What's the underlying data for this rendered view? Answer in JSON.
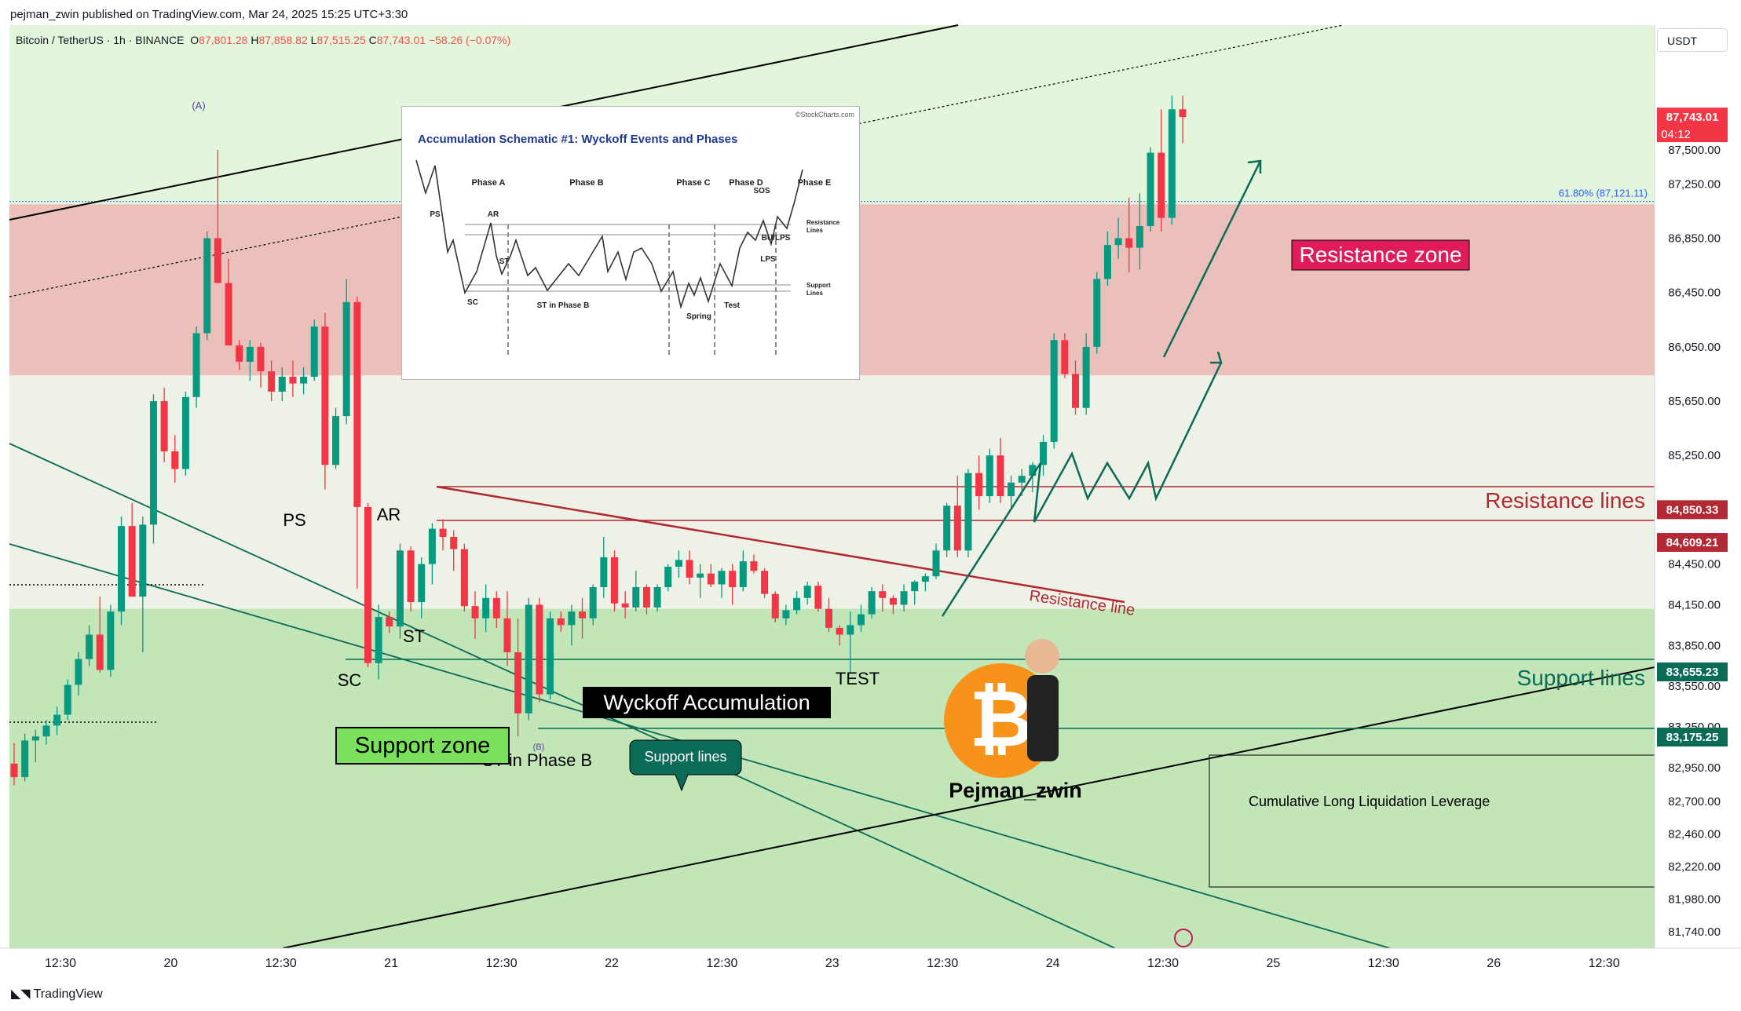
{
  "publisher": "pejman_zwin published on TradingView.com, Mar 24, 2025 15:25 UTC+3:30",
  "legend": {
    "symbol": "Bitcoin / TetherUS · 1h · BINANCE",
    "open_label": "O",
    "open": "87,801.28",
    "high_label": "H",
    "high": "87,858.82",
    "low_label": "L",
    "low": "87,515.25",
    "close_label": "C",
    "close": "87,743.01",
    "change": "−58.26 (−0.07%)"
  },
  "currency": "USDT",
  "footer": "TradingView",
  "colors": {
    "up": "#089981",
    "down": "#f23645",
    "resistance_zone": "#ebc0bb",
    "support_zone": "#c2e6b8",
    "resistance": "#b22833",
    "support": "#0a6b57"
  },
  "chart_data": {
    "type": "candlestick",
    "y_range": [
      81620,
      88420
    ],
    "y_ticks": [
      "87,500.00",
      "87,250.00",
      "86,850.00",
      "86,450.00",
      "86,050.00",
      "85,650.00",
      "85,250.00",
      "84,450.00",
      "84,150.00",
      "83,850.00",
      "83,550.00",
      "83,250.00",
      "82,950.00",
      "82,700.00",
      "82,460.00",
      "82,220.00",
      "81,980.00",
      "81,740.00"
    ],
    "x_ticks": [
      "12:30",
      "20",
      "12:30",
      "21",
      "12:30",
      "22",
      "12:30",
      "23",
      "12:30",
      "24",
      "12:30",
      "25",
      "12:30",
      "26",
      "12:30"
    ],
    "price_tags": [
      {
        "label": "87,743.01",
        "sub": "04:12",
        "value": 87743.01,
        "color": "#f23645"
      },
      {
        "label": "84,850.33",
        "value": 84850.33,
        "color": "#b22833"
      },
      {
        "label": "84,609.21",
        "value": 84609.21,
        "color": "#b22833"
      },
      {
        "label": "83,655.23",
        "value": 83655.23,
        "color": "#0a6b57"
      },
      {
        "label": "83,175.25",
        "value": 83175.25,
        "color": "#0a6b57"
      }
    ],
    "fib_label": "61.80% (87,121.11)",
    "fib_value": 87121.11,
    "resistance_zone": [
      85840,
      87100
    ],
    "support_zone": [
      81620,
      84120
    ],
    "candles": [
      [
        82980,
        83130,
        82820,
        82880
      ],
      [
        82880,
        83200,
        82850,
        83150
      ],
      [
        83150,
        83230,
        82990,
        83180
      ],
      [
        83180,
        83300,
        83120,
        83260
      ],
      [
        83260,
        83400,
        83190,
        83340
      ],
      [
        83340,
        83600,
        83300,
        83560
      ],
      [
        83560,
        83800,
        83480,
        83750
      ],
      [
        83750,
        84000,
        83700,
        83930
      ],
      [
        83930,
        84210,
        83650,
        83670
      ],
      [
        83670,
        84150,
        83620,
        84100
      ],
      [
        84100,
        84800,
        84000,
        84730
      ],
      [
        84730,
        84900,
        84220,
        84210
      ],
      [
        84210,
        84800,
        83800,
        84740
      ],
      [
        84740,
        85700,
        84600,
        85650
      ],
      [
        85650,
        85750,
        85200,
        85280
      ],
      [
        85280,
        85400,
        85050,
        85150
      ],
      [
        85150,
        85720,
        85100,
        85680
      ],
      [
        85680,
        86200,
        85600,
        86150
      ],
      [
        86150,
        86900,
        86100,
        86850
      ],
      [
        86850,
        87500,
        86520,
        86520
      ],
      [
        86520,
        86700,
        86100,
        86060
      ],
      [
        86060,
        86100,
        85880,
        85940
      ],
      [
        85940,
        86100,
        85800,
        86050
      ],
      [
        86050,
        86080,
        85750,
        85870
      ],
      [
        85870,
        85950,
        85650,
        85720
      ],
      [
        85720,
        85900,
        85650,
        85830
      ],
      [
        85830,
        85950,
        85680,
        85780
      ],
      [
        85780,
        85900,
        85700,
        85830
      ],
      [
        85830,
        86250,
        85800,
        86200
      ],
      [
        86200,
        86300,
        85000,
        85180
      ],
      [
        85180,
        85600,
        85150,
        85540
      ],
      [
        85540,
        86550,
        85480,
        86380
      ],
      [
        86380,
        86420,
        84270,
        84870
      ],
      [
        84870,
        84900,
        83690,
        83720
      ],
      [
        83720,
        84150,
        83600,
        84060
      ],
      [
        84060,
        84100,
        83940,
        83990
      ],
      [
        83990,
        84600,
        83900,
        84550
      ],
      [
        84550,
        84580,
        84100,
        84170
      ],
      [
        84170,
        84500,
        84050,
        84450
      ],
      [
        84450,
        84750,
        84300,
        84710
      ],
      [
        84710,
        84780,
        84550,
        84650
      ],
      [
        84650,
        84700,
        84400,
        84560
      ],
      [
        84560,
        84600,
        84100,
        84140
      ],
      [
        84140,
        84250,
        83900,
        84050
      ],
      [
        84050,
        84300,
        83950,
        84200
      ],
      [
        84200,
        84250,
        83980,
        84050
      ],
      [
        84050,
        84250,
        83700,
        83800
      ],
      [
        83800,
        84050,
        83180,
        83350
      ],
      [
        83350,
        84200,
        83300,
        84150
      ],
      [
        84150,
        84200,
        83430,
        83490
      ],
      [
        83490,
        84100,
        83450,
        84050
      ],
      [
        84050,
        84100,
        83950,
        84000
      ],
      [
        84000,
        84150,
        83850,
        84100
      ],
      [
        84100,
        84200,
        83900,
        84050
      ],
      [
        84050,
        84300,
        84000,
        84280
      ],
      [
        84280,
        84650,
        84200,
        84500
      ],
      [
        84500,
        84550,
        84100,
        84160
      ],
      [
        84160,
        84250,
        84050,
        84130
      ],
      [
        84130,
        84400,
        84100,
        84280
      ],
      [
        84280,
        84300,
        84080,
        84130
      ],
      [
        84130,
        84300,
        84100,
        84280
      ],
      [
        84280,
        84450,
        84250,
        84430
      ],
      [
        84430,
        84550,
        84350,
        84480
      ],
      [
        84480,
        84550,
        84300,
        84350
      ],
      [
        84350,
        84450,
        84200,
        84380
      ],
      [
        84380,
        84450,
        84280,
        84300
      ],
      [
        84300,
        84420,
        84200,
        84400
      ],
      [
        84400,
        84450,
        84150,
        84280
      ],
      [
        84280,
        84550,
        84250,
        84470
      ],
      [
        84470,
        84520,
        84380,
        84400
      ],
      [
        84400,
        84420,
        84200,
        84230
      ],
      [
        84230,
        84250,
        84020,
        84050
      ],
      [
        84050,
        84150,
        84000,
        84110
      ],
      [
        84110,
        84250,
        84080,
        84200
      ],
      [
        84200,
        84320,
        84150,
        84290
      ],
      [
        84290,
        84320,
        84100,
        84120
      ],
      [
        84120,
        84200,
        83950,
        83980
      ],
      [
        83980,
        84000,
        83850,
        83930
      ],
      [
        83930,
        84100,
        83650,
        84000
      ],
      [
        84000,
        84150,
        83950,
        84080
      ],
      [
        84080,
        84280,
        84050,
        84250
      ],
      [
        84250,
        84300,
        84100,
        84200
      ],
      [
        84200,
        84220,
        84080,
        84150
      ],
      [
        84150,
        84300,
        84100,
        84250
      ],
      [
        84250,
        84330,
        84150,
        84320
      ],
      [
        84320,
        84380,
        84250,
        84360
      ],
      [
        84360,
        84600,
        84340,
        84550
      ],
      [
        84550,
        84900,
        84500,
        84880
      ],
      [
        84880,
        85100,
        84500,
        84550
      ],
      [
        84550,
        85150,
        84500,
        85120
      ],
      [
        85120,
        85250,
        84850,
        84950
      ],
      [
        84950,
        85300,
        84900,
        85250
      ],
      [
        85250,
        85380,
        84900,
        84950
      ],
      [
        84950,
        85100,
        84870,
        85050
      ],
      [
        85050,
        85150,
        84950,
        85100
      ],
      [
        85100,
        85200,
        84980,
        85180
      ],
      [
        85180,
        85400,
        85100,
        85350
      ],
      [
        85350,
        86150,
        85300,
        86100
      ],
      [
        86100,
        86150,
        85820,
        85850
      ],
      [
        85850,
        85950,
        85550,
        85600
      ],
      [
        85600,
        86150,
        85550,
        86050
      ],
      [
        86050,
        86600,
        86000,
        86550
      ],
      [
        86550,
        86900,
        86500,
        86800
      ],
      [
        86800,
        87000,
        86700,
        86850
      ],
      [
        86850,
        87150,
        86600,
        86780
      ],
      [
        86780,
        87180,
        86620,
        86940
      ],
      [
        86940,
        87520,
        86900,
        87480
      ],
      [
        87480,
        87800,
        86900,
        87000
      ],
      [
        87000,
        87900,
        86950,
        87800
      ],
      [
        87800,
        87900,
        87550,
        87743
      ]
    ]
  },
  "labels": {
    "a": "(A)",
    "b": "(B)",
    "ps": "PS",
    "ar": "AR",
    "sc": "SC",
    "st": "ST",
    "st_b": "ST in Phase B",
    "test": "TEST",
    "wyckoff": "Wyckoff Accumulation",
    "support_zone": "Support zone",
    "support_lines_callout": "Support lines",
    "resistance_zone": "Resistance zone",
    "resistance_lines": "Resistance lines",
    "support_lines": "Support lines",
    "resistance_line": "Resistance line",
    "liquidation": "Cumulative Long Liquidation Leverage",
    "author": "Pejman_zwin"
  },
  "inset": {
    "title": "Accumulation Schematic #1: Wyckoff Events and Phases",
    "source": "©StockCharts.com",
    "phases": [
      "Phase A",
      "Phase B",
      "Phase C",
      "Phase D",
      "Phase E"
    ],
    "events": [
      "PS",
      "AR",
      "SC",
      "ST",
      "ST in Phase B",
      "Spring",
      "Test",
      "SOS",
      "LPS",
      "BU/LPS"
    ],
    "resistance": "Resistance\nLines",
    "support": "Support\nLines"
  }
}
